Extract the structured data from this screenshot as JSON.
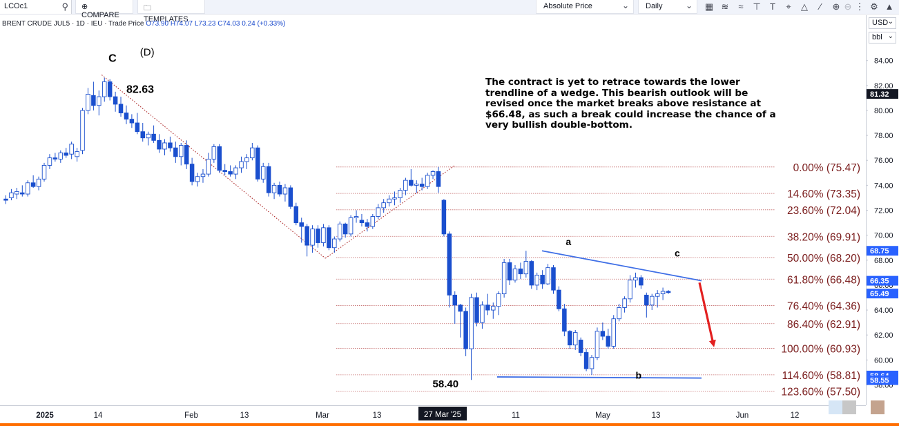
{
  "toolbar": {
    "symbol": "LCOc1",
    "compare_label": "COMPARE",
    "templates_label": "TEMPLATES",
    "price_type": "Absolute Price",
    "interval": "Daily"
  },
  "legend": {
    "name": "BRENT CRUDE JUL5",
    "interval": "1D",
    "exchange": "IEU",
    "price_type": "Trade Price",
    "open": "O73.90",
    "high": "H74.07",
    "low": "L73.23",
    "close": "C74.03",
    "change": "0.24 (+0.33%)"
  },
  "scale": {
    "currency": "USD",
    "unit": "bbl"
  },
  "annotation_text": "The contract is yet to retrace towards the lower trendline of a wedge. This bearish outlook will be revised once the market breaks above resistance at $66.48, as such a break could increase the chance of a very bullish double-bottom.",
  "colors": {
    "up": "#ffffff",
    "down": "#1a4fce",
    "wick": "#1a4fce",
    "fib_text": "#7a1c1c",
    "fib_line": "#c46a6a",
    "trend_blue": "#3f6fe6",
    "arrow_red": "#e32020",
    "dotted_red": "#b03030",
    "label_blue": "#2962ff",
    "label_dark": "#131722"
  },
  "chart_data": {
    "type": "candlestick",
    "ylim": [
      56.4,
      85.2
    ],
    "y_ticks": [
      "84.00",
      "82.00",
      "80.00",
      "78.00",
      "76.00",
      "74.00",
      "72.00",
      "70.00",
      "68.00",
      "66.00",
      "64.00",
      "62.00",
      "60.00",
      "58.00"
    ],
    "x_tick_labels": [
      {
        "label": "2025",
        "bold": true
      },
      {
        "label": "14",
        "bold": false
      },
      {
        "label": "Feb",
        "bold": false
      },
      {
        "label": "13",
        "bold": false
      },
      {
        "label": "Mar",
        "bold": false
      },
      {
        "label": "13",
        "bold": false
      },
      {
        "label": "27 Mar '25",
        "bold": false,
        "cursor": true
      },
      {
        "label": "11",
        "bold": false
      },
      {
        "label": "May",
        "bold": false
      },
      {
        "label": "13",
        "bold": false
      },
      {
        "label": "Jun",
        "bold": false
      },
      {
        "label": "12",
        "bold": false
      }
    ],
    "price_labels": [
      {
        "value": 81.32,
        "text": "81.32",
        "style": "dark"
      },
      {
        "value": 68.75,
        "text": "68.75",
        "style": "blue"
      },
      {
        "value": 66.35,
        "text": "66.35",
        "style": "blue"
      },
      {
        "value": 65.49,
        "text": "65.49",
        "style": "blue"
      },
      {
        "value": 58.64,
        "text": "58.64",
        "style": "blue"
      },
      {
        "value": 58.55,
        "text": "58.55",
        "style": "blue"
      }
    ],
    "fib_levels": [
      {
        "pct": "0.00%",
        "price": 75.47,
        "text": "0.00% (75.47)"
      },
      {
        "pct": "14.60%",
        "price": 73.35,
        "text": "14.60% (73.35)"
      },
      {
        "pct": "23.60%",
        "price": 72.04,
        "text": "23.60% (72.04)"
      },
      {
        "pct": "38.20%",
        "price": 69.91,
        "text": "38.20% (69.91)"
      },
      {
        "pct": "50.00%",
        "price": 68.2,
        "text": "50.00% (68.20)"
      },
      {
        "pct": "61.80%",
        "price": 66.48,
        "text": "61.80% (66.48)"
      },
      {
        "pct": "76.40%",
        "price": 64.36,
        "text": "76.40% (64.36)"
      },
      {
        "pct": "86.40%",
        "price": 62.91,
        "text": "86.40% (62.91)"
      },
      {
        "pct": "100.00%",
        "price": 60.93,
        "text": "100.00% (60.93)"
      },
      {
        "pct": "114.60%",
        "price": 58.81,
        "text": "114.60% (58.81)"
      },
      {
        "pct": "123.60%",
        "price": 57.5,
        "text": "123.60% (57.50)"
      }
    ],
    "wave_labels": [
      {
        "text": "C",
        "bold": true
      },
      {
        "text": "(D)",
        "bold": false
      },
      {
        "text": "82.63",
        "bold": true
      },
      {
        "text": "a",
        "bold": true
      },
      {
        "text": "c",
        "bold": true
      },
      {
        "text": "b",
        "bold": true
      },
      {
        "text": "58.40",
        "bold": true
      }
    ],
    "candles": [
      [
        72.9,
        73.2,
        72.5,
        72.8
      ],
      [
        73.0,
        73.7,
        72.8,
        73.4
      ],
      [
        73.3,
        73.8,
        72.9,
        73.5
      ],
      [
        73.4,
        74.0,
        73.1,
        73.3
      ],
      [
        73.3,
        74.4,
        73.1,
        74.2
      ],
      [
        74.2,
        74.8,
        73.8,
        73.9
      ],
      [
        73.9,
        74.7,
        73.6,
        74.5
      ],
      [
        74.5,
        75.8,
        74.3,
        75.6
      ],
      [
        75.6,
        76.5,
        75.3,
        76.2
      ],
      [
        76.2,
        76.6,
        75.9,
        76.1
      ],
      [
        76.1,
        76.8,
        75.8,
        76.6
      ],
      [
        76.6,
        77.0,
        76.2,
        76.4
      ],
      [
        76.5,
        77.5,
        76.1,
        77.3
      ],
      [
        76.3,
        77.0,
        75.9,
        76.7
      ],
      [
        76.8,
        80.2,
        76.5,
        80.0
      ],
      [
        80.0,
        81.8,
        79.7,
        81.3
      ],
      [
        81.2,
        82.3,
        80.0,
        80.4
      ],
      [
        80.4,
        81.6,
        79.6,
        81.1
      ],
      [
        81.1,
        82.63,
        80.7,
        82.3
      ],
      [
        82.3,
        82.5,
        80.8,
        81.1
      ],
      [
        81.1,
        81.5,
        79.9,
        80.5
      ],
      [
        80.5,
        81.1,
        79.5,
        79.8
      ],
      [
        79.8,
        80.4,
        78.9,
        79.3
      ],
      [
        79.3,
        79.7,
        78.6,
        79.0
      ],
      [
        79.0,
        79.8,
        78.1,
        78.3
      ],
      [
        78.3,
        79.0,
        77.5,
        77.8
      ],
      [
        77.8,
        78.3,
        77.2,
        78.1
      ],
      [
        78.1,
        78.8,
        77.4,
        77.6
      ],
      [
        77.6,
        78.1,
        76.6,
        76.9
      ],
      [
        76.9,
        77.7,
        76.4,
        77.4
      ],
      [
        77.4,
        77.9,
        76.7,
        77.0
      ],
      [
        77.0,
        77.5,
        75.8,
        76.3
      ],
      [
        76.3,
        77.4,
        75.6,
        77.2
      ],
      [
        77.2,
        77.6,
        75.3,
        75.7
      ],
      [
        75.7,
        76.2,
        74.0,
        74.3
      ],
      [
        74.3,
        75.0,
        73.9,
        74.7
      ],
      [
        74.7,
        75.3,
        74.2,
        74.9
      ],
      [
        74.9,
        76.6,
        74.7,
        76.1
      ],
      [
        76.1,
        77.3,
        75.8,
        77.1
      ],
      [
        77.1,
        77.3,
        75.0,
        75.2
      ],
      [
        75.2,
        75.7,
        74.8,
        75.1
      ],
      [
        75.1,
        75.6,
        74.7,
        74.9
      ],
      [
        74.9,
        75.6,
        74.5,
        75.4
      ],
      [
        75.4,
        76.3,
        75.0,
        75.9
      ],
      [
        75.9,
        76.5,
        75.3,
        76.2
      ],
      [
        76.2,
        77.4,
        76.0,
        77.0
      ],
      [
        77.0,
        77.2,
        74.3,
        74.5
      ],
      [
        74.5,
        75.8,
        74.2,
        75.5
      ],
      [
        75.5,
        75.8,
        73.1,
        73.4
      ],
      [
        73.4,
        74.2,
        72.9,
        74.0
      ],
      [
        74.0,
        74.3,
        73.1,
        73.3
      ],
      [
        73.3,
        74.1,
        72.7,
        73.8
      ],
      [
        73.8,
        74.0,
        72.1,
        72.3
      ],
      [
        72.3,
        72.6,
        70.8,
        71.0
      ],
      [
        71.0,
        71.4,
        69.4,
        70.7
      ],
      [
        70.7,
        70.9,
        68.3,
        69.2
      ],
      [
        69.2,
        70.8,
        68.6,
        70.5
      ],
      [
        70.5,
        70.8,
        69.0,
        69.4
      ],
      [
        69.4,
        70.9,
        69.1,
        70.6
      ],
      [
        70.6,
        70.8,
        68.8,
        69.0
      ],
      [
        69.0,
        69.9,
        68.6,
        69.7
      ],
      [
        69.7,
        71.1,
        69.5,
        70.9
      ],
      [
        70.9,
        71.0,
        69.8,
        70.1
      ],
      [
        70.1,
        71.6,
        69.9,
        71.4
      ],
      [
        71.4,
        72.0,
        71.0,
        71.5
      ],
      [
        71.2,
        71.7,
        70.7,
        71.0
      ],
      [
        71.0,
        71.3,
        70.3,
        70.7
      ],
      [
        70.7,
        71.7,
        70.5,
        71.5
      ],
      [
        71.5,
        72.5,
        71.3,
        72.2
      ],
      [
        72.2,
        72.9,
        71.8,
        72.6
      ],
      [
        72.6,
        73.2,
        72.3,
        72.9
      ],
      [
        72.9,
        73.5,
        72.4,
        73.0
      ],
      [
        73.0,
        73.8,
        72.6,
        73.6
      ],
      [
        73.6,
        74.6,
        73.2,
        74.4
      ],
      [
        74.4,
        75.3,
        73.9,
        74.0
      ],
      [
        74.0,
        74.4,
        73.4,
        74.1
      ],
      [
        74.1,
        74.6,
        73.6,
        73.9
      ],
      [
        73.9,
        75.0,
        73.7,
        74.8
      ],
      [
        74.8,
        75.2,
        74.5,
        75.1
      ],
      [
        75.1,
        75.47,
        73.4,
        73.9
      ],
      [
        72.8,
        72.9,
        69.9,
        70.1
      ],
      [
        70.1,
        70.3,
        64.2,
        65.2
      ],
      [
        65.2,
        65.5,
        62.9,
        64.4
      ],
      [
        64.4,
        64.5,
        61.8,
        63.9
      ],
      [
        63.9,
        64.2,
        60.3,
        60.9
      ],
      [
        60.9,
        65.3,
        58.4,
        65.0
      ],
      [
        65.0,
        65.4,
        62.7,
        63.0
      ],
      [
        63.0,
        64.7,
        62.5,
        64.4
      ],
      [
        64.4,
        65.3,
        63.6,
        64.0
      ],
      [
        64.0,
        64.6,
        63.3,
        64.3
      ],
      [
        64.3,
        65.5,
        63.6,
        65.3
      ],
      [
        65.3,
        68.1,
        65.0,
        67.8
      ],
      [
        67.8,
        68.1,
        66.0,
        66.4
      ],
      [
        66.4,
        67.6,
        66.2,
        67.3
      ],
      [
        67.3,
        67.8,
        66.5,
        66.9
      ],
      [
        66.9,
        68.75,
        66.6,
        67.9
      ],
      [
        67.9,
        68.0,
        65.7,
        66.0
      ],
      [
        66.0,
        67.0,
        65.6,
        66.8
      ],
      [
        66.8,
        67.2,
        65.7,
        66.1
      ],
      [
        66.1,
        67.7,
        66.0,
        67.4
      ],
      [
        67.4,
        67.6,
        65.3,
        65.6
      ],
      [
        65.6,
        65.9,
        63.9,
        64.1
      ],
      [
        64.1,
        64.5,
        61.9,
        62.3
      ],
      [
        62.3,
        62.4,
        60.9,
        61.2
      ],
      [
        61.2,
        62.4,
        60.8,
        62.2
      ],
      [
        61.6,
        61.8,
        60.3,
        60.6
      ],
      [
        60.6,
        60.9,
        59.1,
        59.3
      ],
      [
        59.3,
        60.4,
        58.8,
        60.2
      ],
      [
        60.2,
        62.6,
        60.0,
        62.3
      ],
      [
        62.3,
        63.0,
        61.6,
        61.9
      ],
      [
        61.9,
        62.5,
        60.9,
        61.1
      ],
      [
        61.1,
        63.6,
        60.9,
        63.3
      ],
      [
        63.3,
        64.5,
        63.1,
        64.2
      ],
      [
        64.2,
        65.1,
        63.8,
        64.9
      ],
      [
        64.9,
        66.8,
        64.6,
        66.4
      ],
      [
        66.4,
        67.0,
        65.8,
        66.6
      ],
      [
        66.6,
        66.8,
        65.7,
        66.0
      ],
      [
        65.2,
        65.4,
        63.4,
        64.4
      ],
      [
        64.4,
        65.3,
        64.0,
        65.1
      ],
      [
        65.1,
        65.6,
        64.2,
        65.3
      ],
      [
        65.3,
        65.8,
        64.8,
        65.5
      ],
      [
        65.5,
        65.6,
        65.3,
        65.4
      ]
    ]
  }
}
